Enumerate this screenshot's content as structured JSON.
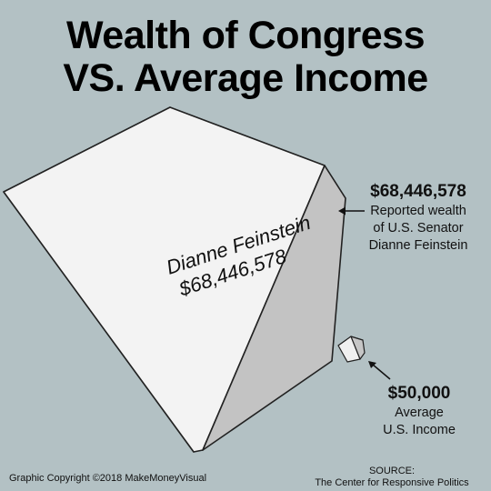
{
  "title": {
    "line1": "Wealth of Congress",
    "line2": "VS. Average Income"
  },
  "chart_data": {
    "type": "volume-comparison",
    "items": [
      {
        "label": "Dianne Feinstein",
        "value": 68446578,
        "value_label": "$68,446,578",
        "annotation_value": "$68,446,578",
        "annotation_lines": [
          "Reported wealth",
          "of U.S. Senator",
          "Dianne Feinstein"
        ]
      },
      {
        "label": "",
        "value": 50000,
        "value_label": "$50,000",
        "annotation_value": "$50,000",
        "annotation_lines": [
          "Average",
          "U.S. Income"
        ]
      }
    ]
  },
  "colors": {
    "background": "#b3c1c4",
    "cube_front": "#f3f3f3",
    "cube_top": "#d9d9d9",
    "cube_side": "#c3c3c3"
  },
  "footer": {
    "copyright": "Graphic Copyright ©2018 MakeMoneyVisual",
    "source_label": "SOURCE:",
    "source_name": "The Center for Responsive Politics"
  }
}
